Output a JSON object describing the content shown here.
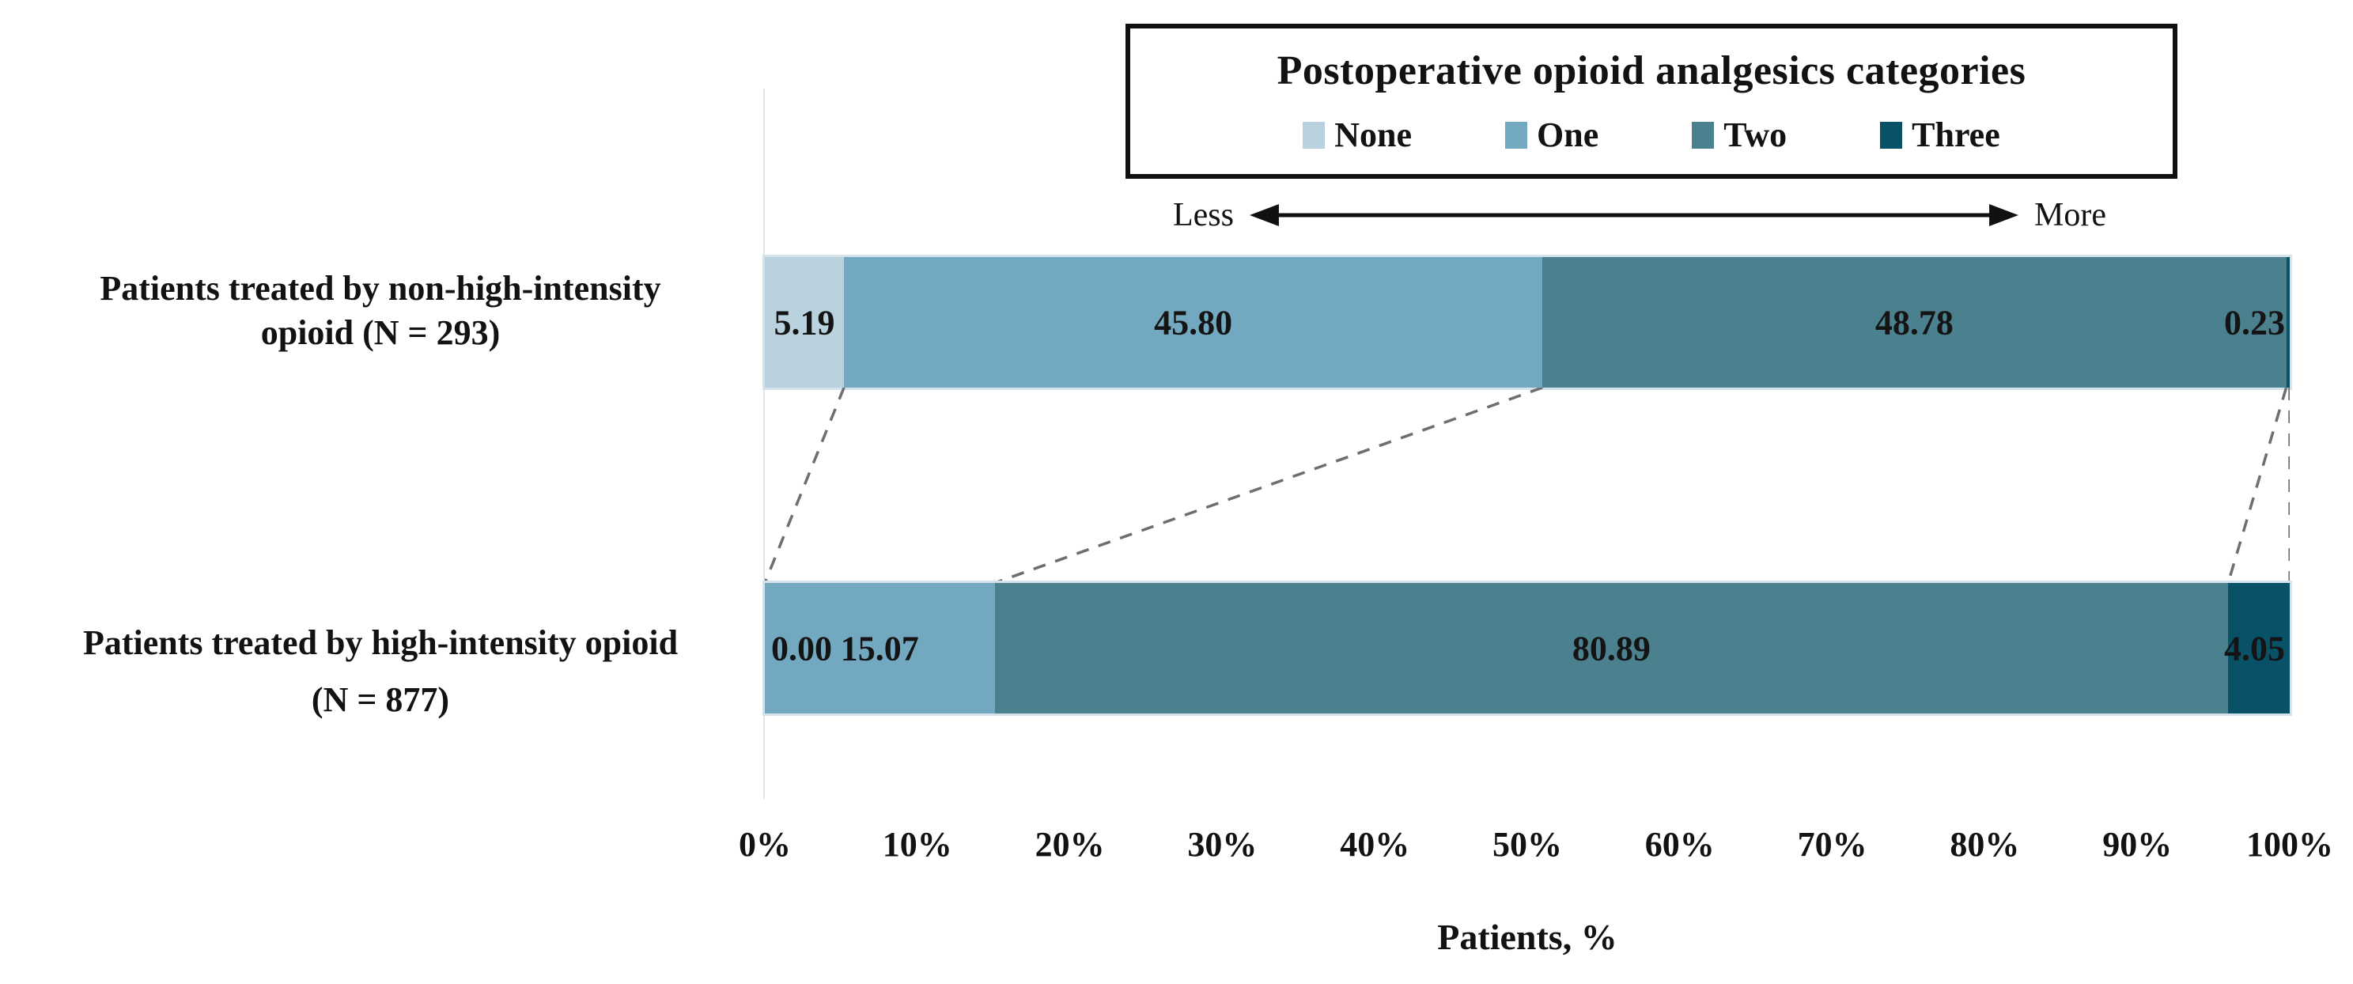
{
  "chart_data": {
    "type": "bar",
    "orientation": "horizontal",
    "stacked": true,
    "title": "Postoperative opioid analgesics categories",
    "legend_position": "top-boxed",
    "grid": false,
    "categories": [
      "Patients treated by non-high-intensity opioid (N = 293)",
      "Patients treated by high-intensity opioid (N = 877)"
    ],
    "category_lines": [
      [
        "Patients treated by non-high-intensity",
        "opioid (N = 293)"
      ],
      [
        "Patients treated by high-intensity opioid",
        "(N = 877)"
      ]
    ],
    "series": [
      {
        "name": "None",
        "color": "#bad1de",
        "values": [
          5.19,
          0.0
        ]
      },
      {
        "name": "One",
        "color": "#73a9c0",
        "values": [
          45.8,
          15.07
        ]
      },
      {
        "name": "Two",
        "color": "#4b808e",
        "values": [
          48.78,
          80.89
        ]
      },
      {
        "name": "Three",
        "color": "#085167",
        "values": [
          0.23,
          4.05
        ]
      }
    ],
    "value_labels": [
      [
        "5.19",
        "45.80",
        "48.78",
        "0.23"
      ],
      [
        "0.00",
        "15.07",
        "80.89",
        "4.05"
      ]
    ],
    "annotations": {
      "less": "Less",
      "more": "More"
    },
    "xlabel": "Patients, %",
    "xlim": [
      0,
      100
    ],
    "xticks": [
      "0%",
      "10%",
      "20%",
      "30%",
      "40%",
      "50%",
      "60%",
      "70%",
      "80%",
      "90%",
      "100%"
    ],
    "connector_color": "#6e6e6e",
    "label_color": "#141414"
  }
}
